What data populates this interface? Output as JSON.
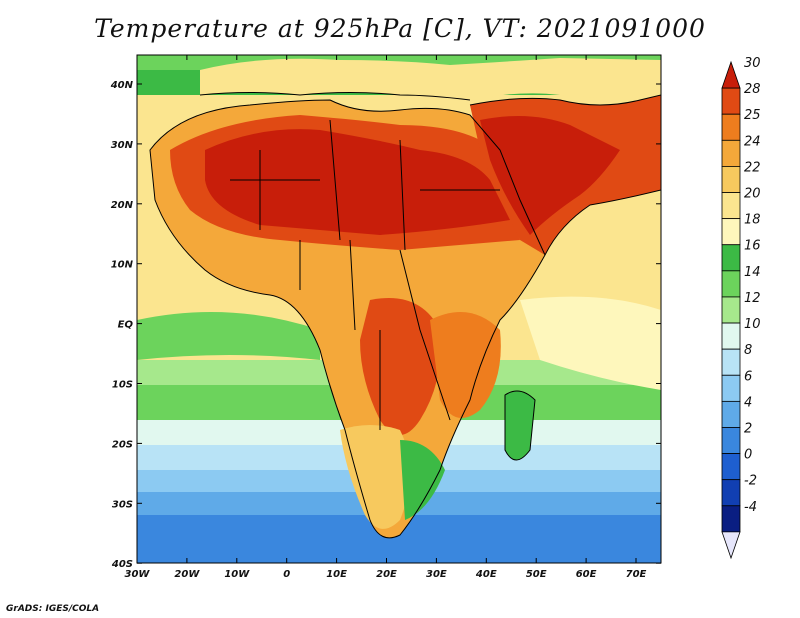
{
  "title": "Temperature at 925hPa [C], VT: 2021091000",
  "credit": "GrADS: IGES/COLA",
  "map": {
    "lon_labels": [
      "30W",
      "20W",
      "10W",
      "0",
      "10E",
      "20E",
      "30E",
      "40E",
      "50E",
      "60E",
      "70E"
    ],
    "lat_labels": [
      "40N",
      "30N",
      "20N",
      "10N",
      "EQ",
      "10S",
      "20S",
      "30S",
      "40S"
    ]
  },
  "colorbar": {
    "labels": [
      "30",
      "28",
      "25",
      "24",
      "22",
      "20",
      "18",
      "16",
      "14",
      "12",
      "10",
      "8",
      "6",
      "4",
      "2",
      "0",
      "-2",
      "-4"
    ],
    "colors": [
      "#c81e0a",
      "#e04a14",
      "#ee7d1e",
      "#f4a83a",
      "#f7c95e",
      "#fbe58f",
      "#fef7bc",
      "#3cba45",
      "#6cd35c",
      "#a6e88c",
      "#e1f8ef",
      "#b8e3f6",
      "#8ccaf2",
      "#5faae8",
      "#3a87de",
      "#1e5fd0",
      "#113fb2",
      "#0a1e82",
      "#e6e6fb"
    ]
  }
}
